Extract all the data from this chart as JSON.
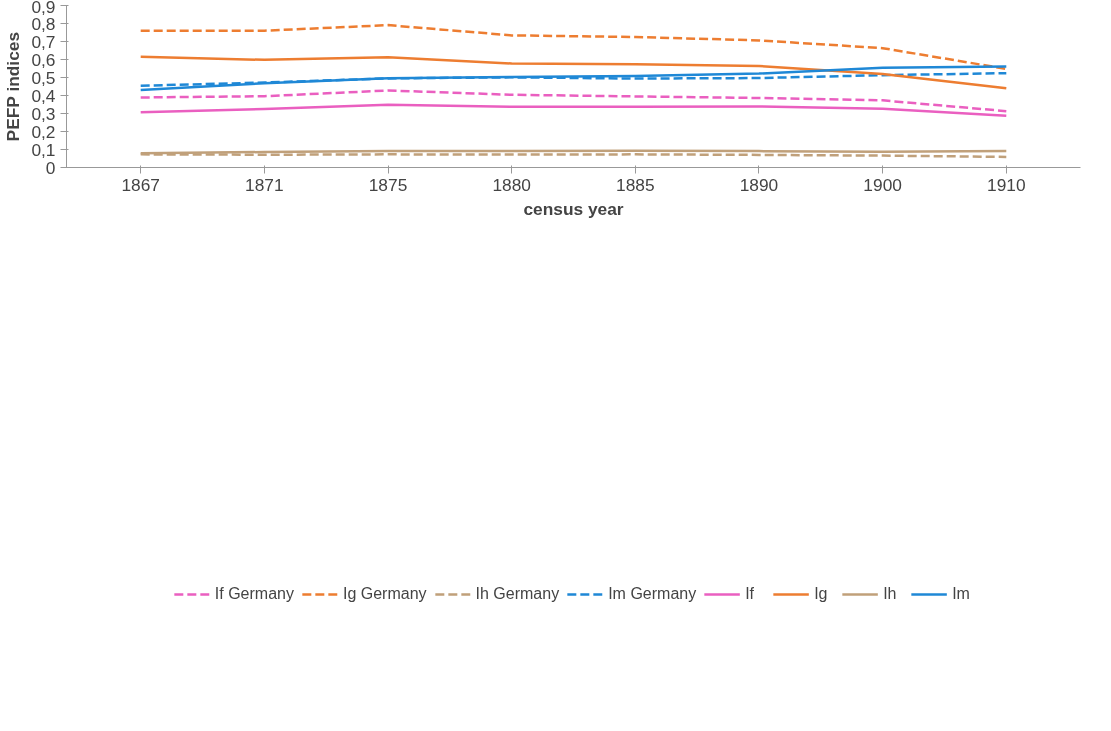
{
  "chart_data": {
    "type": "line",
    "xlabel": "census year",
    "ylabel": "PEFP indices",
    "categories": [
      "1867",
      "1871",
      "1875",
      "1880",
      "1885",
      "1890",
      "1900",
      "1910"
    ],
    "ylim": [
      0,
      0.9
    ],
    "yticks": [
      0,
      {
        "value": 0.1,
        "label": "0,1"
      },
      {
        "value": 0.2,
        "label": "0,2"
      },
      {
        "value": 0.3,
        "label": "0,3"
      },
      {
        "value": 0.4,
        "label": "0,4"
      },
      {
        "value": 0.5,
        "label": "0,5"
      },
      {
        "value": 0.6,
        "label": "0,6"
      },
      {
        "value": 0.7,
        "label": "0,7"
      },
      {
        "value": 0.8,
        "label": "0,8"
      },
      {
        "value": 0.9,
        "label": "0,9"
      }
    ],
    "grid": false,
    "legend": "bottom",
    "marker": "none",
    "series": [
      {
        "name": "If Germany",
        "color": "#ea5fc0",
        "line_style": "dashed",
        "values": [
          0.389,
          0.396,
          0.428,
          0.404,
          0.395,
          0.386,
          0.373,
          0.313
        ]
      },
      {
        "name": "Ig Germany",
        "color": "#ed7d31",
        "line_style": "dashed",
        "values": [
          0.76,
          0.76,
          0.791,
          0.734,
          0.725,
          0.706,
          0.663,
          0.548
        ]
      },
      {
        "name": "Ih Germany",
        "color": "#c0a07a",
        "line_style": "dashed",
        "values": [
          0.073,
          0.071,
          0.073,
          0.072,
          0.073,
          0.07,
          0.066,
          0.059
        ]
      },
      {
        "name": "Im Germany",
        "color": "#1f88d6",
        "line_style": "dashed",
        "values": [
          0.454,
          0.472,
          0.495,
          0.501,
          0.494,
          0.497,
          0.513,
          0.524
        ]
      },
      {
        "name": "If",
        "color": "#ea5fc0",
        "line_style": "solid",
        "values": [
          0.307,
          0.325,
          0.349,
          0.337,
          0.338,
          0.339,
          0.326,
          0.287
        ]
      },
      {
        "name": "Ig",
        "color": "#ed7d31",
        "line_style": "solid",
        "values": [
          0.615,
          0.598,
          0.612,
          0.578,
          0.573,
          0.564,
          0.52,
          0.44
        ]
      },
      {
        "name": "Ih",
        "color": "#c0a07a",
        "line_style": "solid",
        "values": [
          0.079,
          0.086,
          0.092,
          0.092,
          0.093,
          0.091,
          0.087,
          0.091
        ]
      },
      {
        "name": "Im",
        "color": "#1f88d6",
        "line_style": "solid",
        "values": [
          0.431,
          0.468,
          0.496,
          0.503,
          0.508,
          0.522,
          0.554,
          0.561
        ]
      }
    ]
  }
}
